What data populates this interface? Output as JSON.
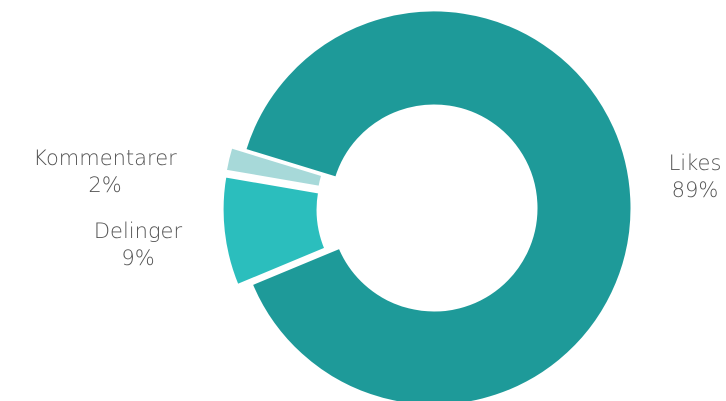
{
  "chart_data": {
    "type": "pie",
    "variant": "donut",
    "title": "",
    "slices": [
      {
        "name": "Likes",
        "label": "Likes",
        "value": 89,
        "value_label": "89%",
        "color": "#1e9a99",
        "exploded": false
      },
      {
        "name": "Delinger",
        "label": "Delinger",
        "value": 9,
        "value_label": "9%",
        "color": "#2bbebd",
        "exploded": true
      },
      {
        "name": "Kommentarer",
        "label": "Kommentarer",
        "value": 2,
        "value_label": "2%",
        "color": "#a7d9d9",
        "exploded": true
      }
    ],
    "legend": "none",
    "data_labels": "outside"
  }
}
